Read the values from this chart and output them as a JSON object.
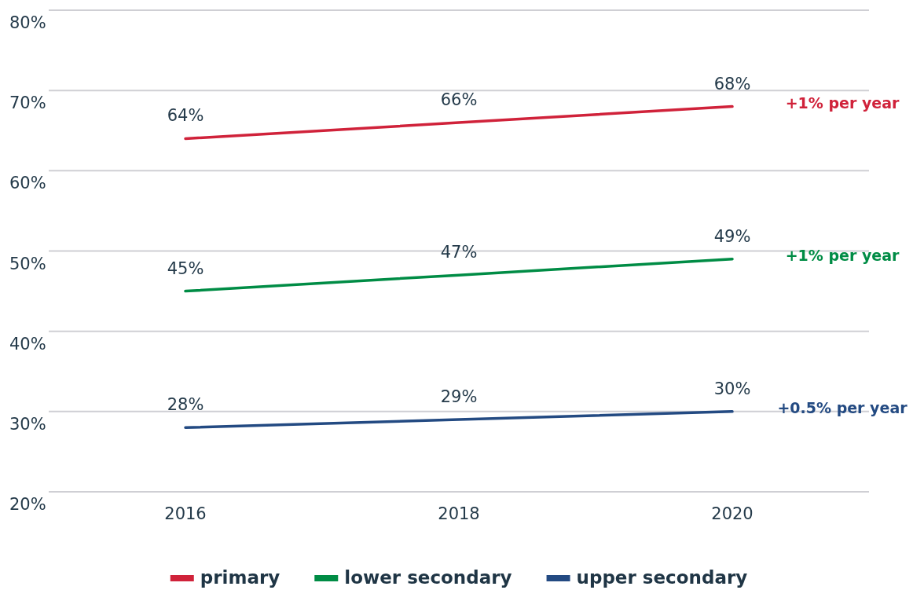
{
  "chart_data": {
    "type": "line",
    "categories": [
      "2016",
      "2018",
      "2020"
    ],
    "series": [
      {
        "name": "primary",
        "color": "#d0223a",
        "values": [
          64,
          66,
          68
        ],
        "value_labels": [
          "64%",
          "66%",
          "68%"
        ]
      },
      {
        "name": "lower secondary",
        "color": "#008c45",
        "values": [
          45,
          47,
          49
        ],
        "value_labels": [
          "45%",
          "47%",
          "49%"
        ]
      },
      {
        "name": "upper secondary",
        "color": "#234a82",
        "values": [
          28,
          29,
          30
        ],
        "value_labels": [
          "28%",
          "29%",
          "30%"
        ]
      }
    ],
    "ylim": [
      20,
      80
    ],
    "yticks": [
      {
        "value": 20,
        "label": "20%"
      },
      {
        "value": 30,
        "label": "30%"
      },
      {
        "value": 40,
        "label": "40%"
      },
      {
        "value": 50,
        "label": "50%"
      },
      {
        "value": 60,
        "label": "60%"
      },
      {
        "value": 70,
        "label": "70%"
      },
      {
        "value": 80,
        "label": "80%"
      }
    ],
    "grid": "y",
    "legend": "bottom",
    "annotations": [
      "+1% per year",
      "+1% per year",
      "+0.5% per year"
    ]
  }
}
